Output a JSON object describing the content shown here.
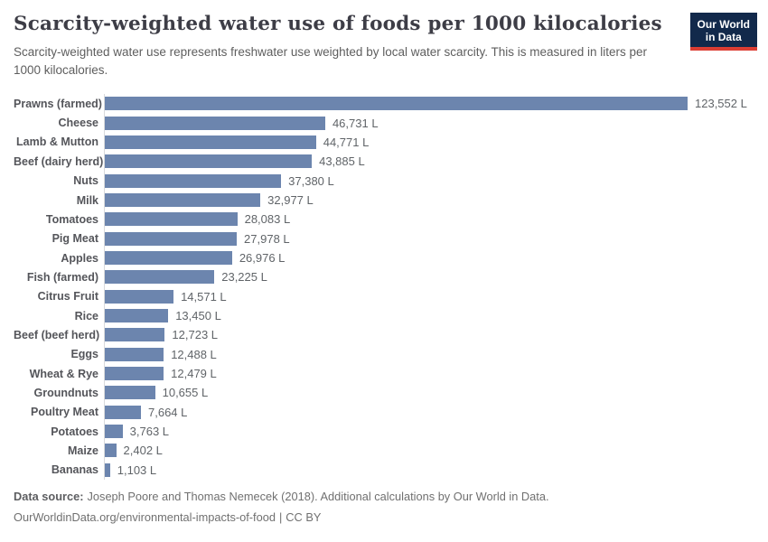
{
  "header": {
    "title": "Scarcity-weighted water use of foods per 1000 kilocalories",
    "subtitle": "Scarcity-weighted water use represents freshwater use weighted by local water scarcity. This is measured in liters per 1000 kilocalories.",
    "logo": {
      "line1": "Our World",
      "line2": "in Data"
    }
  },
  "chart_data": {
    "type": "bar",
    "orientation": "horizontal",
    "title": "Scarcity-weighted water use of foods per 1000 kilocalories",
    "xlabel": "",
    "ylabel": "",
    "unit": "L",
    "grid": false,
    "xlim": [
      0,
      123552
    ],
    "bar_color": "#6c85ae",
    "categories": [
      "Prawns (farmed)",
      "Cheese",
      "Lamb & Mutton",
      "Beef (dairy herd)",
      "Nuts",
      "Milk",
      "Tomatoes",
      "Pig Meat",
      "Apples",
      "Fish (farmed)",
      "Citrus Fruit",
      "Rice",
      "Beef (beef herd)",
      "Eggs",
      "Wheat & Rye",
      "Groundnuts",
      "Poultry Meat",
      "Potatoes",
      "Maize",
      "Bananas"
    ],
    "values": [
      123552,
      46731,
      44771,
      43885,
      37380,
      32977,
      28083,
      27978,
      26976,
      23225,
      14571,
      13450,
      12723,
      12488,
      12479,
      10655,
      7664,
      3763,
      2402,
      1103
    ],
    "value_labels": [
      "123,552 L",
      "46,731 L",
      "44,771 L",
      "43,885 L",
      "37,380 L",
      "32,977 L",
      "28,083 L",
      "27,978 L",
      "26,976 L",
      "23,225 L",
      "14,571 L",
      "13,450 L",
      "12,723 L",
      "12,488 L",
      "12,479 L",
      "10,655 L",
      "7,664 L",
      "3,763 L",
      "2,402 L",
      "1,103 L"
    ]
  },
  "footer": {
    "data_source_label": "Data source:",
    "data_source_text": "Joseph Poore and Thomas Nemecek (2018). Additional calculations by Our World in Data.",
    "link_text": "OurWorldinData.org/environmental-impacts-of-food",
    "separator": "|",
    "license": "CC BY"
  },
  "colors": {
    "bar": "#6c85ae",
    "title": "#3d3d46",
    "subtitle": "#5e5e5e",
    "axis_line": "#d9dadc",
    "logo_bg": "#12294b",
    "logo_underline": "#dc3d33"
  }
}
